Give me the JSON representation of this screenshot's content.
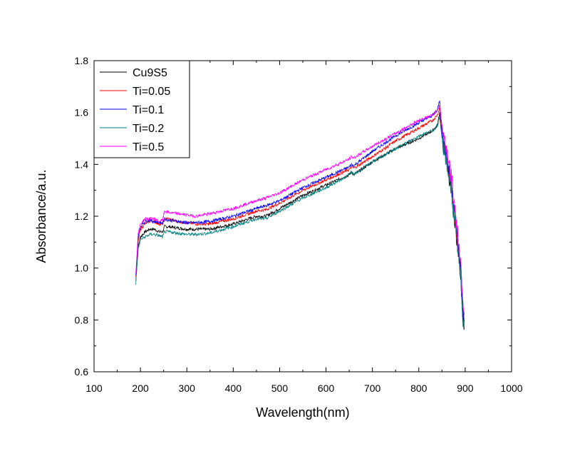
{
  "chart_data": {
    "type": "line",
    "xlabel": "Wavelength(nm)",
    "ylabel": "Absorbance/a.u.",
    "xlim": [
      100,
      1000
    ],
    "ylim": [
      0.6,
      1.8
    ],
    "x_ticks": [
      100,
      200,
      300,
      400,
      500,
      600,
      700,
      800,
      900,
      1000
    ],
    "x_tick_labels": [
      "100",
      "200",
      "300",
      "400",
      "500",
      "600",
      "700",
      "800",
      "900",
      "1000"
    ],
    "y_ticks": [
      0.6,
      0.8,
      1.0,
      1.2,
      1.4,
      1.6,
      1.8
    ],
    "y_tick_labels": [
      "0.6",
      "0.8",
      "1.0",
      "1.2",
      "1.4",
      "1.6",
      "1.8"
    ],
    "grid": false,
    "legend_position": "top-left",
    "series": [
      {
        "name": "Cu9S5",
        "color": "#000000",
        "x": [
          190,
          195,
          200,
          210,
          220,
          230,
          240,
          248,
          252,
          260,
          280,
          300,
          320,
          350,
          400,
          450,
          470,
          500,
          550,
          600,
          650,
          655,
          660,
          700,
          750,
          800,
          830,
          840,
          845,
          848,
          852,
          860,
          870,
          880,
          890,
          895,
          898
        ],
        "y": [
          0.95,
          1.08,
          1.12,
          1.14,
          1.15,
          1.15,
          1.14,
          1.14,
          1.16,
          1.16,
          1.155,
          1.15,
          1.15,
          1.15,
          1.17,
          1.2,
          1.2,
          1.23,
          1.28,
          1.32,
          1.36,
          1.37,
          1.36,
          1.41,
          1.46,
          1.5,
          1.53,
          1.55,
          1.6,
          1.54,
          1.48,
          1.42,
          1.3,
          1.15,
          0.98,
          0.82,
          0.77
        ]
      },
      {
        "name": "Ti=0.05",
        "color": "#ff0000",
        "x": [
          190,
          195,
          200,
          210,
          220,
          230,
          240,
          248,
          252,
          260,
          280,
          300,
          320,
          350,
          400,
          450,
          470,
          500,
          550,
          600,
          650,
          655,
          660,
          700,
          750,
          800,
          830,
          840,
          845,
          848,
          852,
          860,
          870,
          880,
          890,
          895,
          898
        ],
        "y": [
          0.96,
          1.1,
          1.15,
          1.17,
          1.18,
          1.18,
          1.17,
          1.17,
          1.19,
          1.19,
          1.18,
          1.175,
          1.17,
          1.17,
          1.19,
          1.22,
          1.225,
          1.25,
          1.3,
          1.34,
          1.38,
          1.39,
          1.385,
          1.43,
          1.49,
          1.54,
          1.57,
          1.59,
          1.62,
          1.55,
          1.49,
          1.43,
          1.31,
          1.16,
          0.99,
          0.84,
          0.78
        ]
      },
      {
        "name": "Ti=0.1",
        "color": "#0000ff",
        "x": [
          190,
          195,
          200,
          210,
          220,
          230,
          240,
          248,
          252,
          260,
          280,
          300,
          320,
          350,
          400,
          450,
          470,
          500,
          550,
          600,
          650,
          655,
          660,
          700,
          750,
          800,
          830,
          840,
          845,
          848,
          852,
          860,
          870,
          880,
          890,
          895,
          898
        ],
        "y": [
          0.97,
          1.12,
          1.16,
          1.18,
          1.185,
          1.18,
          1.175,
          1.175,
          1.19,
          1.185,
          1.18,
          1.175,
          1.175,
          1.18,
          1.2,
          1.23,
          1.24,
          1.26,
          1.31,
          1.35,
          1.39,
          1.4,
          1.395,
          1.45,
          1.51,
          1.56,
          1.59,
          1.61,
          1.65,
          1.57,
          1.5,
          1.44,
          1.33,
          1.18,
          1.01,
          0.86,
          0.8
        ]
      },
      {
        "name": "Ti=0.2",
        "color": "#008080",
        "x": [
          190,
          195,
          200,
          210,
          220,
          230,
          240,
          248,
          252,
          260,
          280,
          300,
          320,
          350,
          400,
          450,
          470,
          500,
          550,
          600,
          650,
          655,
          660,
          700,
          750,
          800,
          830,
          840,
          845,
          848,
          852,
          860,
          870,
          880,
          890,
          895,
          898
        ],
        "y": [
          0.94,
          1.07,
          1.11,
          1.12,
          1.13,
          1.13,
          1.125,
          1.12,
          1.14,
          1.14,
          1.135,
          1.13,
          1.13,
          1.135,
          1.16,
          1.19,
          1.19,
          1.22,
          1.27,
          1.31,
          1.36,
          1.37,
          1.36,
          1.41,
          1.46,
          1.51,
          1.53,
          1.55,
          1.58,
          1.53,
          1.47,
          1.41,
          1.29,
          1.14,
          0.97,
          0.81,
          0.77
        ]
      },
      {
        "name": "Ti=0.5",
        "color": "#ff00ff",
        "x": [
          190,
          195,
          200,
          210,
          220,
          230,
          240,
          248,
          252,
          260,
          280,
          300,
          320,
          350,
          400,
          450,
          470,
          500,
          550,
          600,
          650,
          655,
          660,
          700,
          750,
          800,
          830,
          840,
          845,
          848,
          852,
          860,
          870,
          880,
          890,
          895,
          898
        ],
        "y": [
          0.98,
          1.13,
          1.17,
          1.19,
          1.19,
          1.19,
          1.18,
          1.185,
          1.22,
          1.215,
          1.21,
          1.205,
          1.2,
          1.21,
          1.23,
          1.26,
          1.27,
          1.29,
          1.34,
          1.38,
          1.42,
          1.43,
          1.425,
          1.47,
          1.52,
          1.57,
          1.59,
          1.61,
          1.63,
          1.58,
          1.52,
          1.46,
          1.35,
          1.2,
          1.03,
          0.88,
          0.82
        ]
      }
    ]
  }
}
